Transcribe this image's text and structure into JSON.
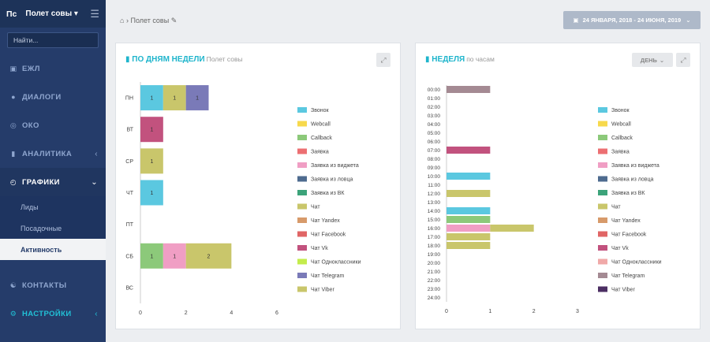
{
  "app": {
    "logo": "Пс",
    "project": "Полет совы"
  },
  "search": {
    "placeholder": "Найти..."
  },
  "nav": [
    {
      "label": "ЕЖЛ",
      "icon": "book-icon"
    },
    {
      "label": "ДИАЛОГИ",
      "icon": "chat-icon"
    },
    {
      "label": "ОКО",
      "icon": "eye-icon"
    },
    {
      "label": "АНАЛИТИКА",
      "icon": "bar-chart-icon"
    },
    {
      "label": "ГРАФИКИ",
      "icon": "clock-icon",
      "children": [
        "Лиды",
        "Посадочные",
        "Активность"
      ],
      "active_child": "Активность"
    },
    {
      "label": "КОНТАКТЫ",
      "icon": "contacts-icon"
    },
    {
      "label": "НАСТРОЙКИ",
      "icon": "gear-icon"
    }
  ],
  "breadcrumb": "Полет совы",
  "date_range": "24 ЯНВАРЯ, 2018 - 24 ИЮНЯ, 2019",
  "panel1": {
    "title": "ПО ДНЯМ НЕДЕЛИ",
    "subtitle": "Полет совы"
  },
  "panel2": {
    "title": "НЕДЕЛЯ",
    "subtitle": "по часам",
    "day_button": "ДЕНЬ"
  },
  "colors": {
    "Звонок": "#5bc8e0",
    "Webcall": "#f7d94c",
    "Callback": "#8cc97a",
    "Заявка": "#ec6f72",
    "Заявка из виджета": "#f09ec4",
    "Заявка из ловца": "#4e6b8f",
    "Заявка из ВК": "#3ca37a",
    "Чат": "#c9c66b",
    "Чат Yandex": "#d79a6a",
    "Чат Facebook": "#e06565",
    "Чат Vk": "#c2527e",
    "Чат Одноклассники": "#c4ec4c",
    "Чат Telegram": "#7a7ab8",
    "Чат Viber": "#c9c66b",
    "Чат Telegram (hour)": "#a48a93"
  },
  "chart_data": [
    {
      "type": "bar",
      "orientation": "horizontal",
      "stacked": true,
      "categories": [
        "ПН",
        "ВТ",
        "СР",
        "ЧТ",
        "ПТ",
        "СБ",
        "ВС"
      ],
      "xlim": [
        0,
        6
      ],
      "xticks": [
        0,
        2,
        4,
        6
      ],
      "legend": [
        "Звонок",
        "Webcall",
        "Callback",
        "Заявка",
        "Заявка из виджета",
        "Заявка из ловца",
        "Заявка из ВК",
        "Чат",
        "Чат Yandex",
        "Чат Facebook",
        "Чат Vk",
        "Чат Одноклассники",
        "Чат Telegram",
        "Чат Viber"
      ],
      "legend_colors": [
        "#5bc8e0",
        "#f7d94c",
        "#8cc97a",
        "#ec6f72",
        "#f09ec4",
        "#4e6b8f",
        "#3ca37a",
        "#c9c66b",
        "#d79a6a",
        "#e06565",
        "#c2527e",
        "#c4ec4c",
        "#7a7ab8",
        "#c9c66b"
      ],
      "segments": [
        {
          "cat": "ПН",
          "series": "Звонок",
          "value": 1,
          "color": "#5bc8e0"
        },
        {
          "cat": "ПН",
          "series": "Чат",
          "value": 1,
          "color": "#c9c66b"
        },
        {
          "cat": "ПН",
          "series": "Чат Telegram",
          "value": 1,
          "color": "#7a7ab8"
        },
        {
          "cat": "ВТ",
          "series": "Чат Vk",
          "value": 1,
          "color": "#c2527e"
        },
        {
          "cat": "СР",
          "series": "Чат",
          "value": 1,
          "color": "#c9c66b"
        },
        {
          "cat": "ЧТ",
          "series": "Звонок",
          "value": 1,
          "color": "#5bc8e0"
        },
        {
          "cat": "СБ",
          "series": "Callback",
          "value": 1,
          "color": "#8cc97a"
        },
        {
          "cat": "СБ",
          "series": "Заявка из виджета",
          "value": 1,
          "color": "#f09ec4"
        },
        {
          "cat": "СБ",
          "series": "Чат",
          "value": 2,
          "color": "#c9c66b"
        }
      ]
    },
    {
      "type": "bar",
      "orientation": "horizontal",
      "stacked": true,
      "categories": [
        "00:00",
        "01:00",
        "02:00",
        "03:00",
        "04:00",
        "05:00",
        "06:00",
        "07:00",
        "08:00",
        "09:00",
        "10:00",
        "11:00",
        "12:00",
        "13:00",
        "14:00",
        "15:00",
        "16:00",
        "17:00",
        "18:00",
        "19:00",
        "20:00",
        "21:00",
        "22:00",
        "23:00",
        "24:00"
      ],
      "xlim": [
        0,
        3
      ],
      "xticks": [
        0,
        1,
        2,
        3
      ],
      "legend": [
        "Звонок",
        "Webcall",
        "Callback",
        "Заявка",
        "Заявка из виджета",
        "Заявка из ловца",
        "Заявка из ВК",
        "Чат",
        "Чат Yandex",
        "Чат Facebook",
        "Чат Vk",
        "Чат Одноклассники",
        "Чат Telegram",
        "Чат Viber"
      ],
      "legend_colors": [
        "#5bc8e0",
        "#f7d94c",
        "#8cc97a",
        "#ec6f72",
        "#f09ec4",
        "#4e6b8f",
        "#3ca37a",
        "#c9c66b",
        "#d79a6a",
        "#e06565",
        "#c2527e",
        "#f0a9a8",
        "#a48a93",
        "#4c2f63"
      ],
      "segments": [
        {
          "cat": "00:00",
          "series": "Чат Telegram",
          "value": 1,
          "color": "#a48a93"
        },
        {
          "cat": "07:00",
          "series": "Чат Vk",
          "value": 1,
          "color": "#c2527e"
        },
        {
          "cat": "10:00",
          "series": "Звонок",
          "value": 1,
          "color": "#5bc8e0"
        },
        {
          "cat": "12:00",
          "series": "Чат",
          "value": 1,
          "color": "#c9c66b"
        },
        {
          "cat": "14:00",
          "series": "Звонок",
          "value": 1,
          "color": "#5bc8e0"
        },
        {
          "cat": "15:00",
          "series": "Callback",
          "value": 1,
          "color": "#8cc97a"
        },
        {
          "cat": "16:00",
          "series": "Заявка из виджета",
          "value": 1,
          "color": "#f09ec4"
        },
        {
          "cat": "16:00",
          "series": "Чат",
          "value": 1,
          "color": "#c9c66b"
        },
        {
          "cat": "17:00",
          "series": "Чат",
          "value": 1,
          "color": "#c9c66b"
        },
        {
          "cat": "18:00",
          "series": "Чат",
          "value": 1,
          "color": "#c9c66b"
        }
      ]
    }
  ]
}
